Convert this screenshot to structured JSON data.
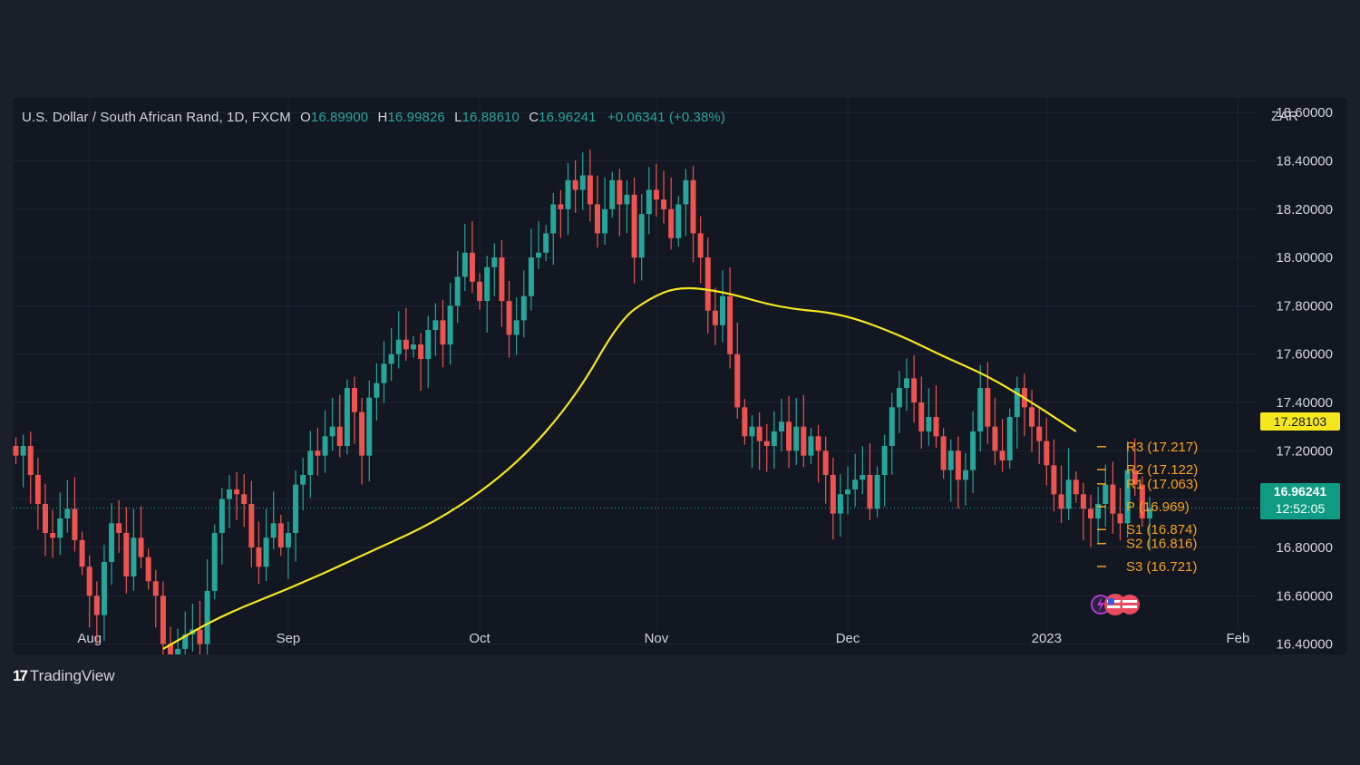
{
  "legend": {
    "symbol": "U.S. Dollar / South African Rand, 1D, FXCM",
    "o_label": "O",
    "o_value": "16.89900",
    "h_label": "H",
    "h_value": "16.99826",
    "l_label": "L",
    "l_value": "16.88610",
    "c_label": "C",
    "c_value": "16.96241",
    "change": "+0.06341 (+0.38%)"
  },
  "axis": {
    "currency": "ZAR",
    "price_ticks": [
      "18.60000",
      "18.40000",
      "18.20000",
      "18.00000",
      "17.80000",
      "17.60000",
      "17.40000",
      "17.20000",
      "17.00000",
      "16.80000",
      "16.60000",
      "16.40000"
    ],
    "time_ticks": [
      {
        "label": "Aug",
        "bar": 10
      },
      {
        "label": "Sep",
        "bar": 37
      },
      {
        "label": "Oct",
        "bar": 63
      },
      {
        "label": "Nov",
        "bar": 87
      },
      {
        "label": "Dec",
        "bar": 113
      },
      {
        "label": "2023",
        "bar": 140
      },
      {
        "label": "Feb",
        "bar": 166
      }
    ]
  },
  "price_tags": {
    "ma": "17.28103",
    "last": "16.96241",
    "countdown": "12:52:05"
  },
  "pivots": [
    {
      "label": "R3 (17.217)",
      "value": 17.217
    },
    {
      "label": "R2 (17.122)",
      "value": 17.122
    },
    {
      "label": "R1 (17.063)",
      "value": 17.063
    },
    {
      "label": "P (16.969)",
      "value": 16.969
    },
    {
      "label": "S1 (16.874)",
      "value": 16.874
    },
    {
      "label": "S2 (16.816)",
      "value": 16.816
    },
    {
      "label": "S3 (16.721)",
      "value": 16.721
    }
  ],
  "brand": {
    "name": "TradingView"
  },
  "colors": {
    "up": "#26a69a",
    "down": "#ef5350",
    "ma": "#f5e71e",
    "pivot": "#f7a21b",
    "grid": "#1f2432",
    "bg": "#131722"
  },
  "chart_data": {
    "type": "candlestick",
    "ylim": [
      16.3571,
      18.6607
    ],
    "last_price": 16.96241,
    "closes": [
      17.18,
      17.22,
      17.1,
      16.98,
      16.86,
      16.84,
      16.92,
      16.96,
      16.83,
      16.72,
      16.6,
      16.52,
      16.74,
      16.9,
      16.86,
      16.68,
      16.84,
      16.76,
      16.66,
      16.6,
      16.4,
      16.34,
      16.38,
      16.44,
      16.46,
      16.4,
      16.62,
      16.86,
      17.0,
      17.04,
      17.02,
      16.98,
      16.8,
      16.72,
      16.84,
      16.9,
      16.8,
      16.86,
      17.06,
      17.1,
      17.2,
      17.18,
      17.26,
      17.3,
      17.22,
      17.46,
      17.36,
      17.18,
      17.42,
      17.48,
      17.56,
      17.6,
      17.66,
      17.62,
      17.64,
      17.58,
      17.7,
      17.74,
      17.64,
      17.8,
      17.92,
      18.02,
      17.9,
      17.82,
      17.96,
      18.0,
      17.82,
      17.68,
      17.74,
      17.84,
      18.0,
      18.02,
      18.1,
      18.22,
      18.2,
      18.32,
      18.28,
      18.34,
      18.22,
      18.1,
      18.2,
      18.32,
      18.22,
      18.26,
      18.0,
      18.18,
      18.28,
      18.24,
      18.2,
      18.08,
      18.22,
      18.32,
      18.1,
      18.0,
      17.78,
      17.72,
      17.84,
      17.6,
      17.38,
      17.26,
      17.3,
      17.24,
      17.22,
      17.28,
      17.32,
      17.2,
      17.3,
      17.18,
      17.26,
      17.2,
      17.1,
      16.94,
      17.02,
      17.04,
      17.08,
      17.1,
      16.96,
      17.1,
      17.22,
      17.38,
      17.46,
      17.5,
      17.4,
      17.28,
      17.34,
      17.26,
      17.12,
      17.2,
      17.08,
      17.12,
      17.28,
      17.46,
      17.3,
      17.2,
      17.16,
      17.34,
      17.46,
      17.38,
      17.3,
      17.24,
      17.14,
      17.02,
      16.96,
      17.08,
      17.02,
      16.96,
      16.92,
      16.98,
      17.06,
      16.94,
      16.9,
      17.12,
      17.06,
      16.92,
      16.96241
    ],
    "ma50": [
      {
        "bar": 20,
        "value": 16.38
      },
      {
        "bar": 28,
        "value": 16.52
      },
      {
        "bar": 38,
        "value": 16.64
      },
      {
        "bar": 48,
        "value": 16.78
      },
      {
        "bar": 58,
        "value": 16.92
      },
      {
        "bar": 68,
        "value": 17.14
      },
      {
        "bar": 76,
        "value": 17.42
      },
      {
        "bar": 82,
        "value": 17.74
      },
      {
        "bar": 86,
        "value": 17.83
      },
      {
        "bar": 90,
        "value": 17.88
      },
      {
        "bar": 96,
        "value": 17.86
      },
      {
        "bar": 104,
        "value": 17.79
      },
      {
        "bar": 112,
        "value": 17.77
      },
      {
        "bar": 120,
        "value": 17.68
      },
      {
        "bar": 126,
        "value": 17.59
      },
      {
        "bar": 132,
        "value": 17.51
      },
      {
        "bar": 138,
        "value": 17.4
      },
      {
        "bar": 144,
        "value": 17.28
      }
    ]
  }
}
